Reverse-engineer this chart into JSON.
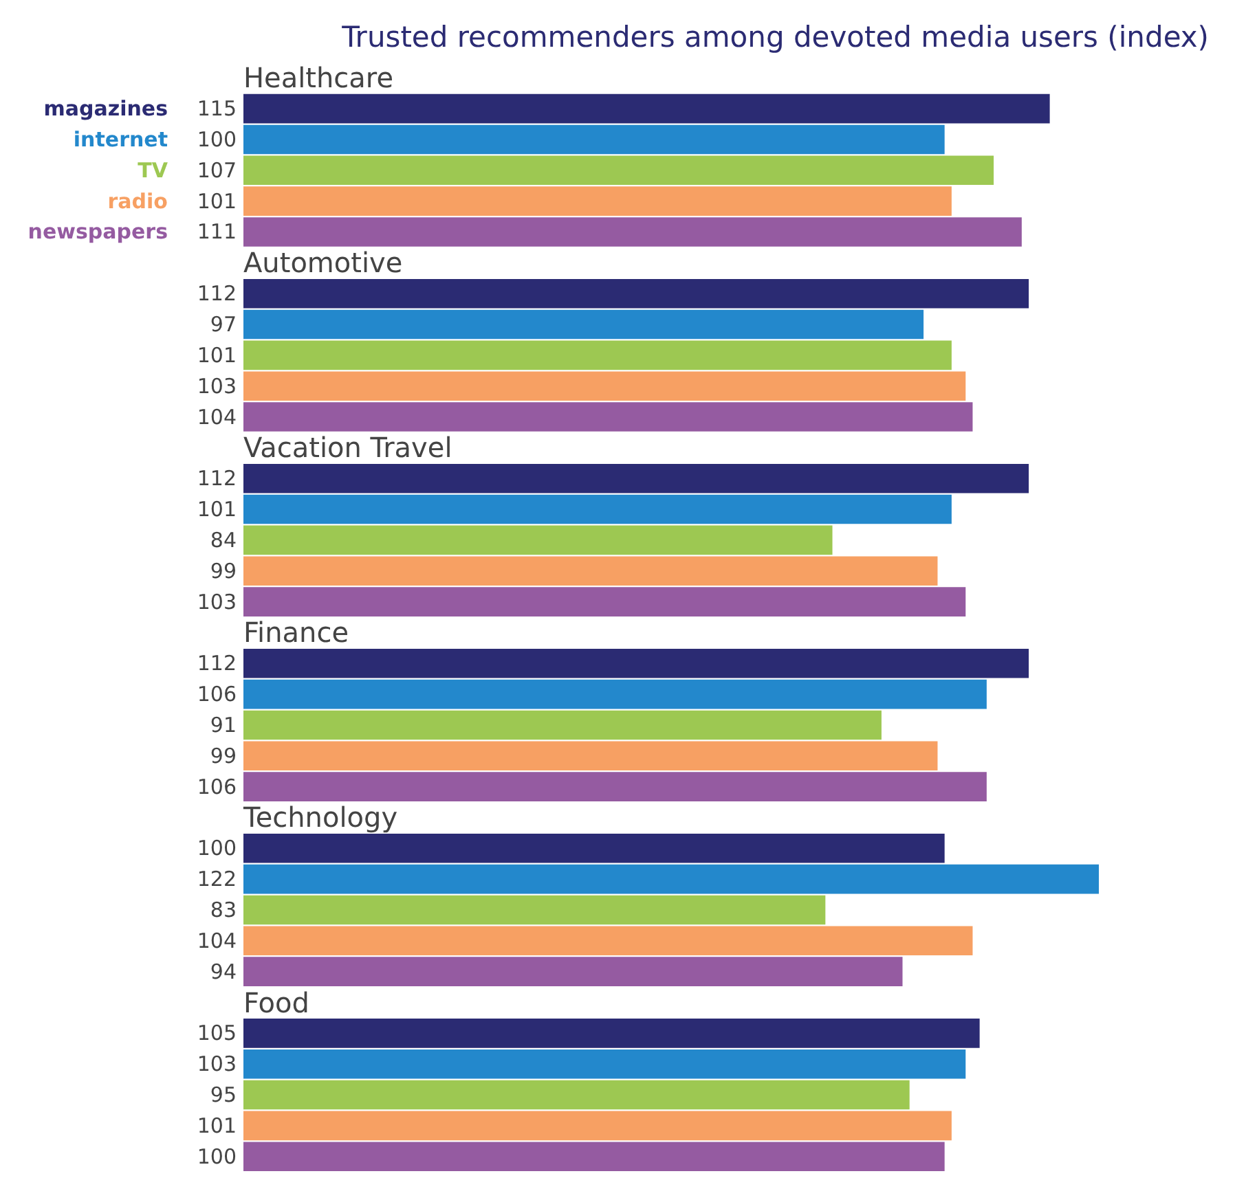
{
  "chart_data": {
    "type": "bar",
    "orientation": "horizontal",
    "title": "Trusted recommenders among devoted media users (index)",
    "categories": [
      "Healthcare",
      "Automotive",
      "Vacation Travel",
      "Finance",
      "Technology",
      "Food"
    ],
    "series": [
      {
        "name": "magazines",
        "color": "#2b2b73",
        "values": [
          115,
          112,
          112,
          112,
          100,
          105
        ]
      },
      {
        "name": "internet",
        "color": "#2388cc",
        "values": [
          100,
          97,
          101,
          106,
          122,
          103
        ]
      },
      {
        "name": "TV",
        "color": "#9dc852",
        "values": [
          107,
          101,
          84,
          91,
          83,
          95
        ]
      },
      {
        "name": "radio",
        "color": "#f7a063",
        "values": [
          101,
          103,
          99,
          99,
          104,
          101
        ]
      },
      {
        "name": "newspapers",
        "color": "#955ba1",
        "values": [
          111,
          104,
          103,
          106,
          94,
          100
        ]
      }
    ],
    "data_labels": true
  }
}
